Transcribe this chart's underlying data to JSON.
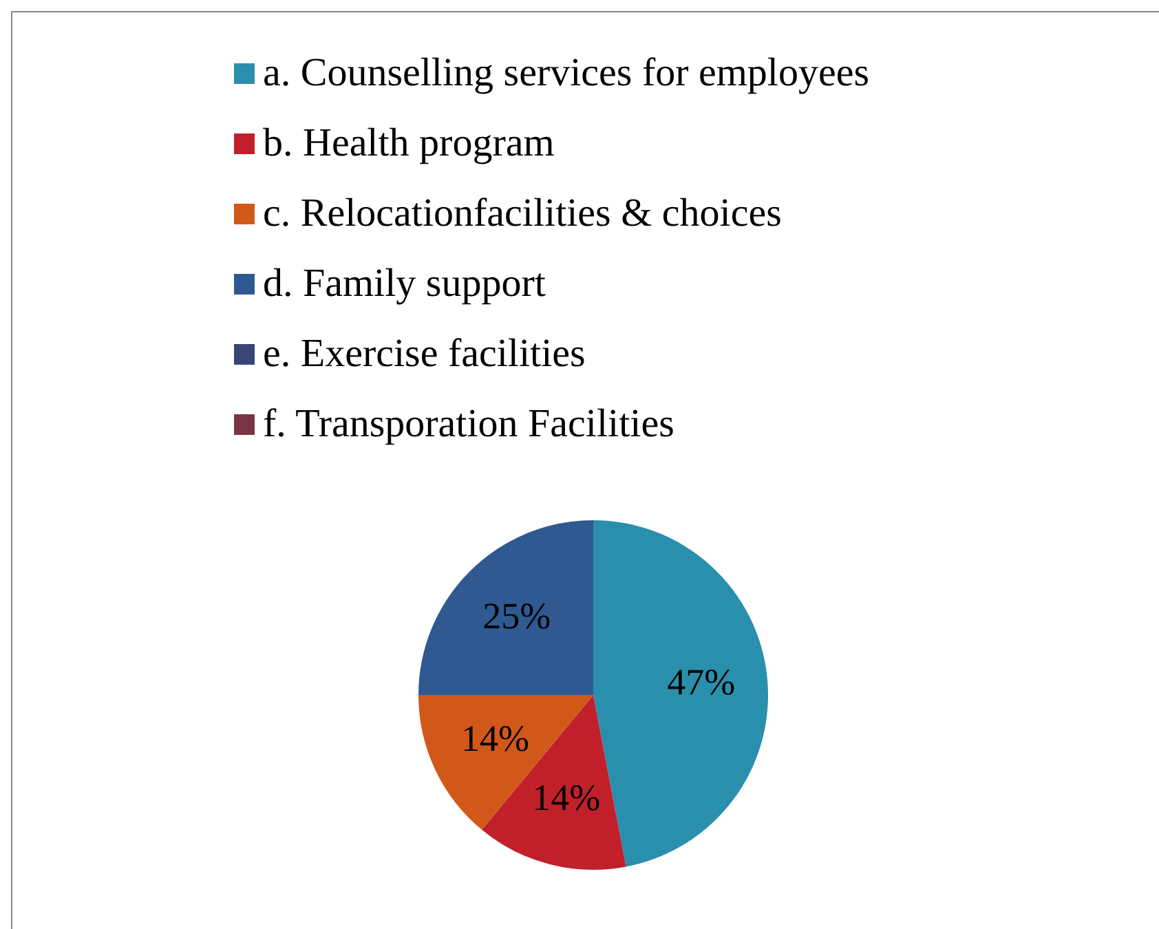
{
  "chart_data": {
    "type": "pie",
    "categories": [
      "a. Counselling services for employees",
      "b. Health program",
      "c. Relocationfacilities & choices",
      "d. Family support",
      "e. Exercise facilities",
      "f. Transporation Facilities"
    ],
    "values": [
      47,
      14,
      14,
      25,
      0,
      0
    ],
    "colors": [
      "#2a8fad",
      "#c1202b",
      "#d2581a",
      "#2f5990",
      "#3a4576",
      "#7a3542"
    ],
    "value_labels": [
      "47%",
      "14%",
      "14%",
      "25%",
      null,
      null
    ],
    "legend": "top"
  }
}
